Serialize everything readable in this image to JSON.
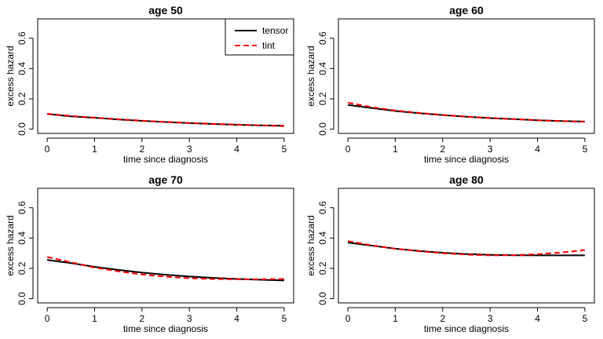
{
  "chart_data": [
    {
      "type": "line",
      "title": "age 50",
      "xlabel": "time since diagnosis",
      "ylabel": "excess hazard",
      "xlim": [
        0,
        5
      ],
      "ylim": [
        0,
        0.7
      ],
      "xticks": [
        "0",
        "1",
        "2",
        "3",
        "4",
        "5"
      ],
      "yticks": [
        "0.0",
        "0.2",
        "0.4",
        "0.6"
      ],
      "legend": {
        "position": "top-right",
        "entries": [
          "tensor",
          "tint"
        ]
      },
      "x": [
        0,
        0.5,
        1,
        1.5,
        2,
        2.5,
        3,
        3.5,
        4,
        4.5,
        5
      ],
      "series": [
        {
          "name": "tensor",
          "color": "#000000",
          "style": "solid",
          "values": [
            0.1,
            0.085,
            0.075,
            0.064,
            0.055,
            0.047,
            0.04,
            0.034,
            0.029,
            0.025,
            0.022
          ]
        },
        {
          "name": "tint",
          "color": "#ff0000",
          "style": "dashed",
          "values": [
            0.102,
            0.087,
            0.076,
            0.065,
            0.056,
            0.048,
            0.041,
            0.035,
            0.03,
            0.025,
            0.02
          ]
        }
      ]
    },
    {
      "type": "line",
      "title": "age 60",
      "xlabel": "time since diagnosis",
      "ylabel": "excess hazard",
      "xlim": [
        0,
        5
      ],
      "ylim": [
        0,
        0.7
      ],
      "xticks": [
        "0",
        "1",
        "2",
        "3",
        "4",
        "5"
      ],
      "yticks": [
        "0.0",
        "0.2",
        "0.4",
        "0.6"
      ],
      "x": [
        0,
        0.5,
        1,
        1.5,
        2,
        2.5,
        3,
        3.5,
        4,
        4.5,
        5
      ],
      "series": [
        {
          "name": "tensor",
          "color": "#000000",
          "style": "solid",
          "values": [
            0.16,
            0.14,
            0.12,
            0.105,
            0.093,
            0.082,
            0.073,
            0.066,
            0.059,
            0.054,
            0.05
          ]
        },
        {
          "name": "tint",
          "color": "#ff0000",
          "style": "dashed",
          "values": [
            0.175,
            0.145,
            0.123,
            0.107,
            0.094,
            0.083,
            0.074,
            0.066,
            0.059,
            0.053,
            0.048
          ]
        }
      ]
    },
    {
      "type": "line",
      "title": "age 70",
      "xlabel": "time since diagnosis",
      "ylabel": "excess hazard",
      "xlim": [
        0,
        5
      ],
      "ylim": [
        0,
        0.7
      ],
      "xticks": [
        "0",
        "1",
        "2",
        "3",
        "4",
        "5"
      ],
      "yticks": [
        "0.0",
        "0.2",
        "0.4",
        "0.6"
      ],
      "x": [
        0,
        0.5,
        1,
        1.5,
        2,
        2.5,
        3,
        3.5,
        4,
        4.5,
        5
      ],
      "series": [
        {
          "name": "tensor",
          "color": "#000000",
          "style": "solid",
          "values": [
            0.255,
            0.235,
            0.21,
            0.19,
            0.172,
            0.158,
            0.146,
            0.137,
            0.13,
            0.125,
            0.12
          ]
        },
        {
          "name": "tint",
          "color": "#ff0000",
          "style": "dashed",
          "values": [
            0.275,
            0.24,
            0.205,
            0.18,
            0.16,
            0.145,
            0.135,
            0.13,
            0.128,
            0.128,
            0.13
          ]
        }
      ]
    },
    {
      "type": "line",
      "title": "age 80",
      "xlabel": "time since diagnosis",
      "ylabel": "excess hazard",
      "xlim": [
        0,
        5
      ],
      "ylim": [
        0,
        0.7
      ],
      "xticks": [
        "0",
        "1",
        "2",
        "3",
        "4",
        "5"
      ],
      "yticks": [
        "0.0",
        "0.2",
        "0.4",
        "0.6"
      ],
      "x": [
        0,
        0.5,
        1,
        1.5,
        2,
        2.5,
        3,
        3.5,
        4,
        4.5,
        5
      ],
      "series": [
        {
          "name": "tensor",
          "color": "#000000",
          "style": "solid",
          "values": [
            0.37,
            0.35,
            0.33,
            0.315,
            0.303,
            0.294,
            0.289,
            0.287,
            0.286,
            0.286,
            0.286
          ]
        },
        {
          "name": "tint",
          "color": "#ff0000",
          "style": "dashed",
          "values": [
            0.38,
            0.352,
            0.33,
            0.313,
            0.3,
            0.291,
            0.286,
            0.287,
            0.293,
            0.305,
            0.32
          ]
        }
      ]
    }
  ]
}
